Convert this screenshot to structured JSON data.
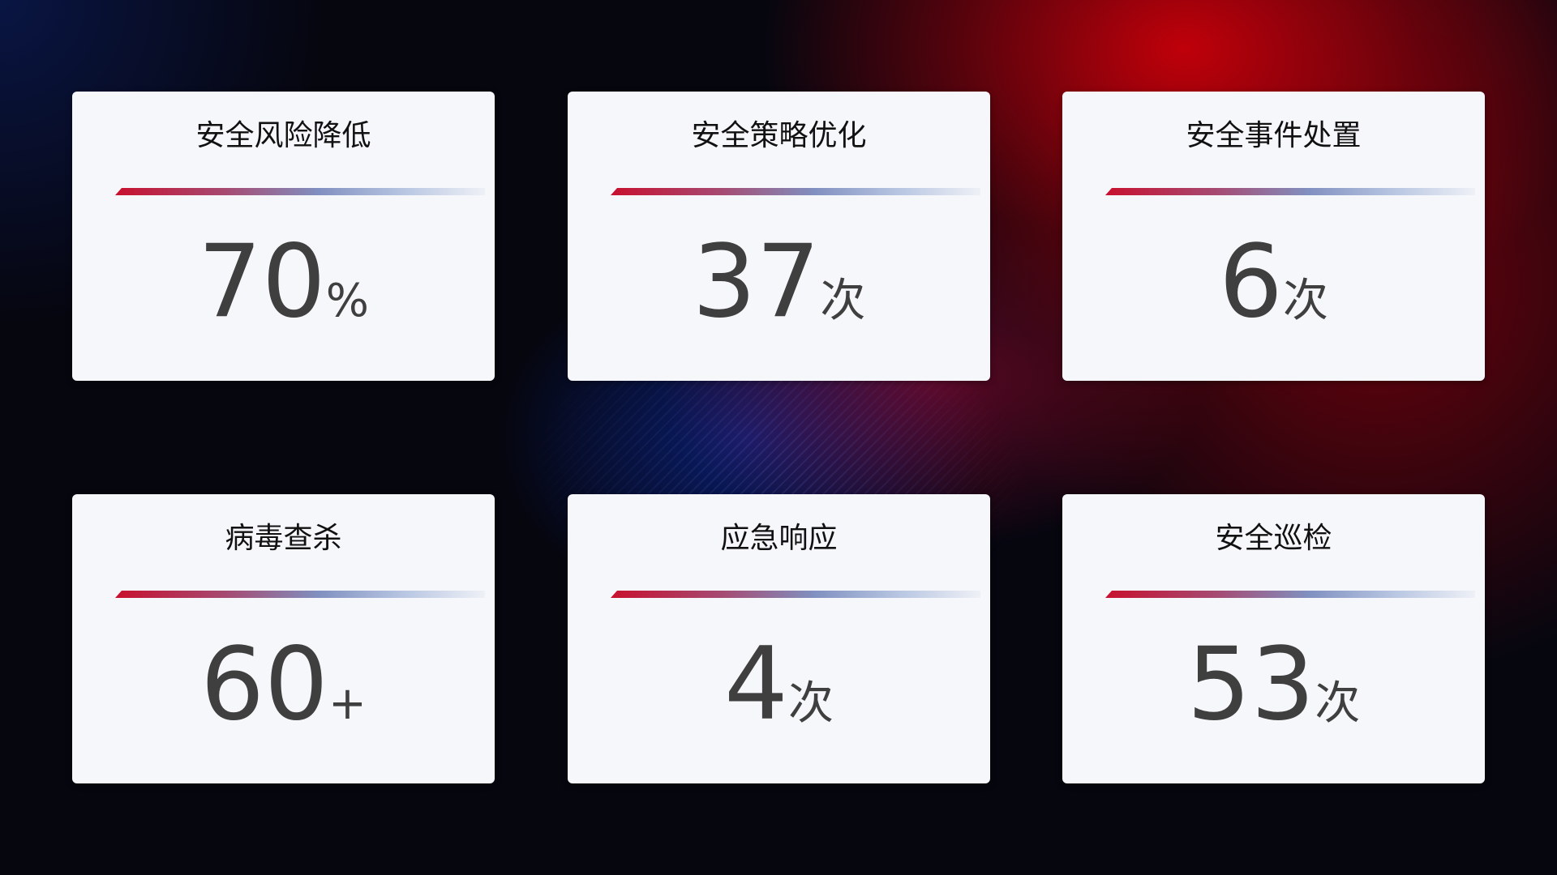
{
  "cards": [
    {
      "title": "安全风险降低",
      "value": "70",
      "unit": "%"
    },
    {
      "title": "安全策略优化",
      "value": "37",
      "unit": "次"
    },
    {
      "title": "安全事件处置",
      "value": "6",
      "unit": "次"
    },
    {
      "title": "病毒查杀",
      "value": "60",
      "unit": "+"
    },
    {
      "title": "应急响应",
      "value": "4",
      "unit": "次"
    },
    {
      "title": "安全巡检",
      "value": "53",
      "unit": "次"
    }
  ],
  "colors": {
    "accent_red": "#c8102e",
    "accent_blue": "#8090c0",
    "card_bg": "#f6f7fb",
    "value_text": "#3f3f3f"
  }
}
